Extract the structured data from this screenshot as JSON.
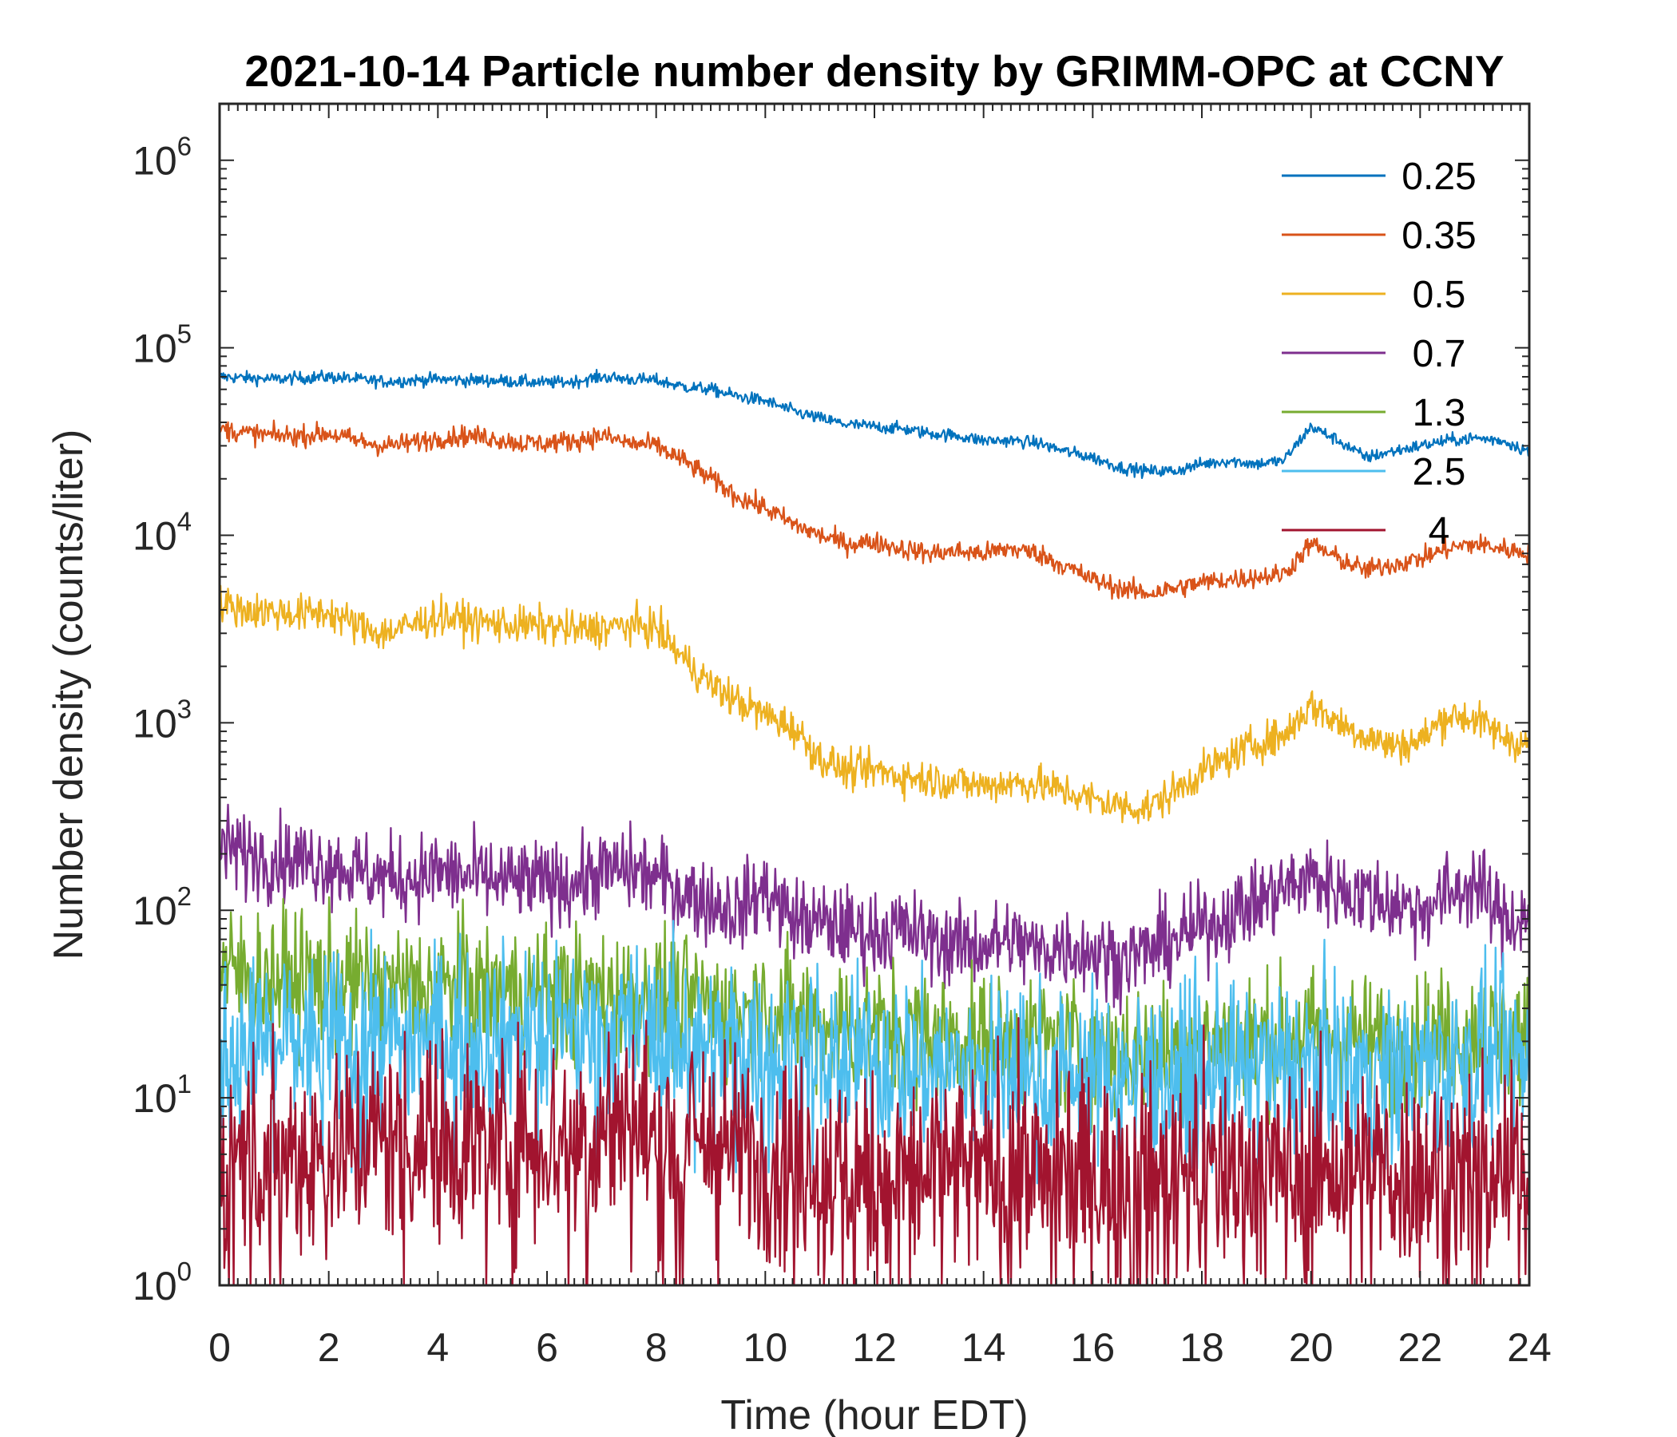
{
  "chart_data": {
    "type": "line",
    "title": "2021-10-14 Particle number density by GRIMM-OPC at CCNY",
    "xlabel": "Time (hour EDT)",
    "ylabel": "Number density (counts/liter)",
    "xlim": [
      0,
      24
    ],
    "ylim": [
      1,
      2000000
    ],
    "yscale": "log",
    "x_ticks": [
      0,
      2,
      4,
      6,
      8,
      10,
      12,
      14,
      16,
      18,
      20,
      22,
      24
    ],
    "y_ticks": [
      {
        "base": "10",
        "exp": "0",
        "value": 1
      },
      {
        "base": "10",
        "exp": "1",
        "value": 10
      },
      {
        "base": "10",
        "exp": "2",
        "value": 100
      },
      {
        "base": "10",
        "exp": "3",
        "value": 1000
      },
      {
        "base": "10",
        "exp": "4",
        "value": 10000
      },
      {
        "base": "10",
        "exp": "5",
        "value": 100000
      },
      {
        "base": "10",
        "exp": "6",
        "value": 1000000
      }
    ],
    "legend_position": "top-right",
    "x": [
      0,
      0.5,
      1,
      1.5,
      2,
      2.5,
      3,
      3.5,
      4,
      4.5,
      5,
      5.5,
      6,
      6.5,
      7,
      7.5,
      8,
      8.5,
      9,
      9.5,
      10,
      10.5,
      11,
      11.5,
      12,
      12.5,
      13,
      13.5,
      14,
      14.5,
      15,
      15.5,
      16,
      16.5,
      17,
      17.5,
      18,
      18.5,
      19,
      19.5,
      20,
      20.5,
      21,
      21.5,
      22,
      22.5,
      23,
      23.5,
      24
    ],
    "series": [
      {
        "name": "0.25",
        "color": "#0072BD",
        "noise": 0.03,
        "values": [
          70000,
          69000,
          68000,
          69000,
          70000,
          68000,
          66000,
          67000,
          68000,
          67000,
          67000,
          66000,
          65000,
          66000,
          70000,
          68000,
          67000,
          62000,
          60000,
          55000,
          52000,
          46000,
          42000,
          39000,
          38000,
          37000,
          35000,
          34000,
          32000,
          32000,
          31000,
          28000,
          26000,
          23000,
          22000,
          22000,
          24000,
          25000,
          24000,
          25000,
          38000,
          32000,
          26000,
          28000,
          30000,
          32000,
          33000,
          32000,
          28000
        ]
      },
      {
        "name": "0.35",
        "color": "#D95319",
        "noise": 0.05,
        "values": [
          37000,
          35000,
          34000,
          34000,
          35000,
          32000,
          30000,
          31000,
          33000,
          34000,
          33000,
          31000,
          31000,
          32000,
          34000,
          31000,
          30000,
          25000,
          20000,
          16000,
          14000,
          11500,
          10000,
          9000,
          9200,
          8500,
          8000,
          8200,
          8000,
          8500,
          8000,
          6800,
          5800,
          5200,
          4900,
          5200,
          5600,
          5800,
          6000,
          6200,
          9000,
          7500,
          6500,
          7000,
          7500,
          8500,
          9000,
          8500,
          8000
        ]
      },
      {
        "name": "0.5",
        "color": "#EDB120",
        "noise": 0.09,
        "values": [
          4300,
          4000,
          3900,
          3800,
          3900,
          3300,
          3000,
          3300,
          3700,
          3500,
          3400,
          3300,
          3300,
          3100,
          3200,
          3300,
          3200,
          2200,
          1600,
          1300,
          1100,
          950,
          650,
          550,
          560,
          520,
          500,
          480,
          460,
          480,
          470,
          430,
          390,
          360,
          350,
          430,
          550,
          650,
          780,
          850,
          1250,
          1000,
          850,
          750,
          800,
          1100,
          1050,
          850,
          750
        ]
      },
      {
        "name": "0.7",
        "color": "#7E2F8E",
        "noise": 0.2,
        "values": [
          220,
          200,
          190,
          185,
          180,
          160,
          150,
          150,
          160,
          150,
          145,
          140,
          140,
          140,
          160,
          165,
          150,
          125,
          110,
          100,
          130,
          90,
          85,
          80,
          75,
          80,
          70,
          65,
          65,
          70,
          60,
          65,
          60,
          55,
          60,
          70,
          80,
          95,
          110,
          130,
          150,
          130,
          120,
          110,
          100,
          120,
          140,
          90,
          90
        ]
      },
      {
        "name": "1.3",
        "color": "#77AC30",
        "noise": 0.32,
        "values": [
          48,
          45,
          44,
          43,
          42,
          40,
          38,
          38,
          40,
          38,
          38,
          36,
          35,
          35,
          36,
          35,
          34,
          32,
          30,
          28,
          30,
          27,
          25,
          24,
          23,
          22,
          22,
          21,
          20,
          20,
          20,
          19,
          18,
          18,
          18,
          18,
          19,
          20,
          20,
          21,
          22,
          21,
          20,
          19,
          20,
          21,
          22,
          21,
          20
        ]
      },
      {
        "name": "2.5",
        "color": "#4DBEEE",
        "noise": 0.42,
        "values": [
          18,
          19,
          20,
          19,
          20,
          21,
          20,
          21,
          22,
          21,
          21,
          22,
          21,
          22,
          22,
          21,
          21,
          20,
          19,
          18,
          17,
          17,
          16,
          15,
          15,
          15,
          14,
          14,
          14,
          14,
          13,
          13,
          13,
          13,
          13,
          13,
          13,
          14,
          14,
          14,
          15,
          15,
          14,
          14,
          14,
          15,
          15,
          15,
          14
        ]
      },
      {
        "name": "4",
        "color": "#A2142F",
        "noise": 0.5,
        "values": [
          5,
          5,
          5,
          5,
          5,
          6,
          6,
          6,
          6,
          6,
          6,
          6,
          6,
          6,
          7,
          7,
          6,
          6,
          6,
          5,
          5,
          5,
          4,
          4,
          4,
          4,
          4,
          4,
          4,
          4,
          4,
          4,
          4,
          3.5,
          3.5,
          4,
          4,
          4,
          4,
          4,
          4,
          4,
          4,
          4,
          4,
          4,
          4,
          4,
          4
        ]
      }
    ]
  }
}
